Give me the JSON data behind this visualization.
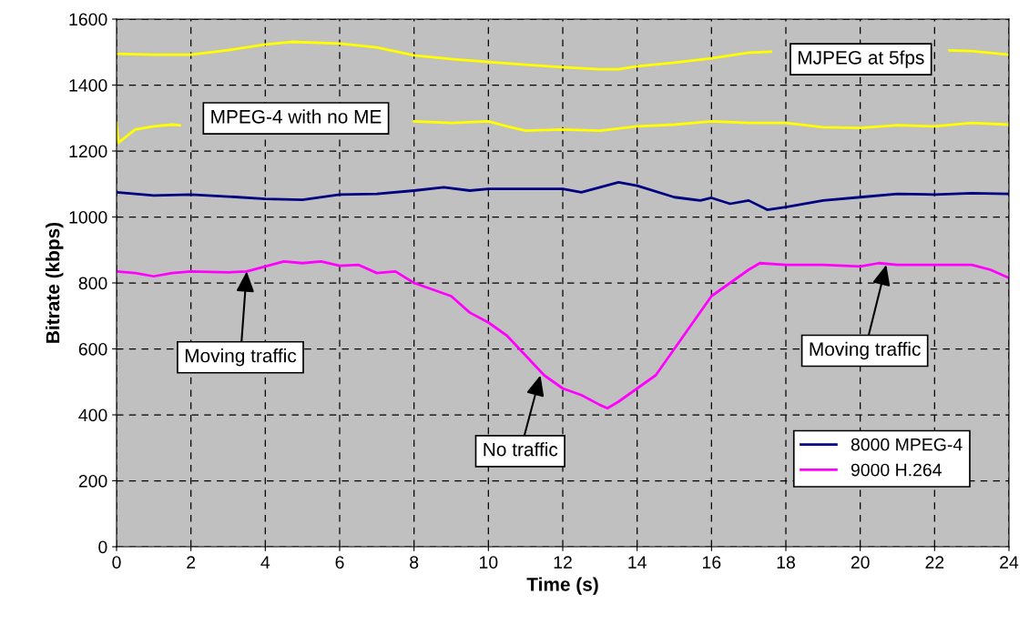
{
  "chart_data": {
    "type": "line",
    "xlabel": "Time (s)",
    "ylabel": "Bitrate (kbps)",
    "xlim": [
      0,
      24
    ],
    "xticks": [
      0,
      2,
      4,
      6,
      8,
      10,
      12,
      14,
      16,
      18,
      20,
      22,
      24
    ],
    "ylim": [
      0,
      1600
    ],
    "yticks": [
      0,
      200,
      400,
      600,
      800,
      1000,
      1200,
      1400,
      1600
    ],
    "grid": true,
    "legend": "bottom right",
    "marker": "none",
    "line_style": "solid",
    "series": [
      {
        "color": "#ffff00",
        "x": [
          0,
          1,
          2,
          3,
          4,
          4.7,
          6,
          7,
          8,
          9,
          10,
          11,
          12,
          13,
          13.5,
          14,
          15,
          16,
          17,
          17.6,
          18,
          22.4,
          23,
          24
        ],
        "values": [
          1495,
          1492,
          1492,
          1506,
          1523,
          1531,
          1526,
          1514,
          1490,
          1479,
          1470,
          1462,
          1454,
          1448,
          1448,
          1457,
          1468,
          1481,
          1498,
          1501,
          null,
          1505,
          1503,
          1492
        ]
      },
      {
        "color": "#ffff00",
        "x": [
          0,
          0.05,
          0.5,
          1,
          1.5,
          1.7,
          2,
          7.9,
          8,
          9,
          10,
          10.5,
          11,
          12,
          13,
          14,
          15,
          16,
          17,
          18,
          19,
          20,
          21,
          22,
          23,
          24
        ],
        "values": [
          1285,
          1225,
          1265,
          1275,
          1280,
          1278,
          null,
          null,
          1290,
          1285,
          1290,
          1275,
          1262,
          1265,
          1262,
          1275,
          1280,
          1290,
          1285,
          1285,
          1272,
          1270,
          1278,
          1275,
          1285,
          1280
        ]
      },
      {
        "name": "8000 MPEG-4",
        "color": "#000080",
        "x": [
          0,
          1,
          2,
          3,
          4,
          5,
          6,
          7,
          8,
          8.8,
          9.5,
          10,
          11,
          12,
          12.5,
          13,
          13.5,
          14,
          15,
          15.7,
          16,
          16.5,
          17,
          17.5,
          18,
          19,
          20,
          21,
          22,
          23,
          24
        ],
        "values": [
          1075,
          1065,
          1068,
          1062,
          1055,
          1052,
          1068,
          1070,
          1080,
          1090,
          1080,
          1085,
          1085,
          1085,
          1075,
          1090,
          1105,
          1095,
          1060,
          1050,
          1058,
          1040,
          1050,
          1022,
          1030,
          1050,
          1060,
          1070,
          1068,
          1072,
          1070
        ]
      },
      {
        "name": "9000 H.264",
        "color": "#ff00ff",
        "x": [
          0,
          0.5,
          1,
          1.5,
          2,
          3,
          3.5,
          4,
          4.5,
          5,
          5.5,
          6,
          6.5,
          7,
          7.5,
          8,
          8.5,
          9,
          9.5,
          10,
          10.5,
          11,
          11.5,
          12,
          12.5,
          13,
          13.2,
          13.5,
          14,
          14.5,
          15,
          15.5,
          16,
          16.5,
          17,
          17.3,
          18,
          19,
          20,
          20.5,
          21,
          22,
          23,
          23.5,
          24
        ],
        "values": [
          835,
          830,
          820,
          830,
          835,
          832,
          835,
          850,
          865,
          860,
          865,
          852,
          855,
          830,
          835,
          800,
          780,
          760,
          710,
          680,
          640,
          580,
          520,
          480,
          460,
          430,
          420,
          440,
          480,
          520,
          600,
          680,
          760,
          800,
          840,
          860,
          855,
          855,
          850,
          860,
          855,
          855,
          855,
          840,
          815
        ]
      }
    ],
    "annotations": [
      "MJPEG at 5fps",
      "MPEG-4 with no ME",
      {
        "text": "Moving traffic",
        "x": 3.5,
        "y": 835
      },
      {
        "text": "No traffic",
        "x": 11.4,
        "y": 520
      },
      {
        "text": "Moving traffic",
        "x": 20.7,
        "y": 855
      }
    ]
  }
}
